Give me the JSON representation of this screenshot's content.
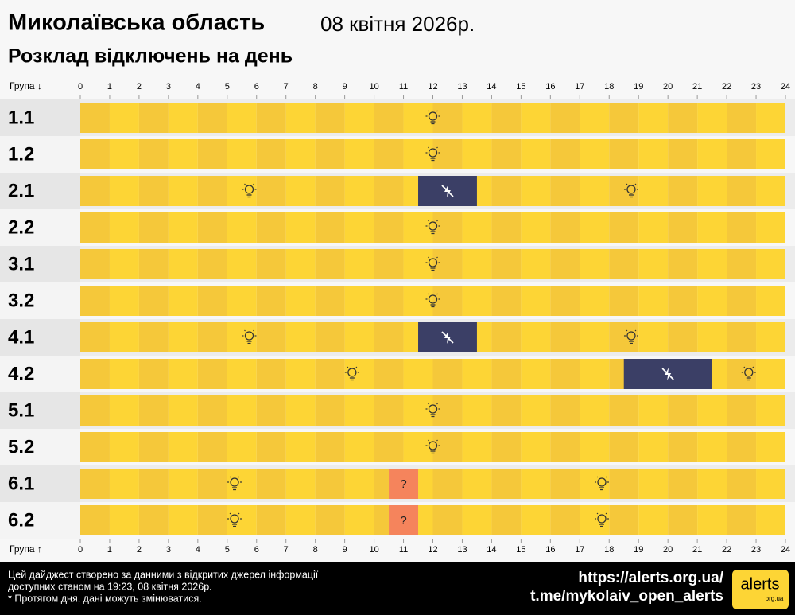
{
  "chart_data": {
    "type": "gantt",
    "title": "Миколаївська область",
    "date": "08 квітня 2026р.",
    "subtitle": "Розклад відключень на день",
    "axis_label_top": "Група ↓",
    "axis_label_bottom": "Група ↑",
    "xlim": [
      0,
      24
    ],
    "xticks": [
      0,
      1,
      2,
      3,
      4,
      5,
      6,
      7,
      8,
      9,
      10,
      11,
      12,
      13,
      14,
      15,
      16,
      17,
      18,
      19,
      20,
      21,
      22,
      23,
      24
    ],
    "colors": {
      "on": "#fdd535",
      "on_alt": "#f5c83a",
      "outage": "#3b3f66",
      "uncertain": "#f5845c"
    },
    "rows": [
      {
        "name": "1.1",
        "outages": [],
        "uncertain": []
      },
      {
        "name": "1.2",
        "outages": [],
        "uncertain": []
      },
      {
        "name": "2.1",
        "outages": [
          {
            "start": 11.5,
            "end": 13.5
          }
        ],
        "uncertain": []
      },
      {
        "name": "2.2",
        "outages": [],
        "uncertain": []
      },
      {
        "name": "3.1",
        "outages": [],
        "uncertain": []
      },
      {
        "name": "3.2",
        "outages": [],
        "uncertain": []
      },
      {
        "name": "4.1",
        "outages": [
          {
            "start": 11.5,
            "end": 13.5
          }
        ],
        "uncertain": []
      },
      {
        "name": "4.2",
        "outages": [
          {
            "start": 18.5,
            "end": 21.5
          }
        ],
        "uncertain": []
      },
      {
        "name": "5.1",
        "outages": [],
        "uncertain": []
      },
      {
        "name": "5.2",
        "outages": [],
        "uncertain": []
      },
      {
        "name": "6.1",
        "outages": [],
        "uncertain": [
          {
            "start": 10.5,
            "end": 11.5,
            "label": "?"
          }
        ]
      },
      {
        "name": "6.2",
        "outages": [],
        "uncertain": [
          {
            "start": 10.5,
            "end": 11.5,
            "label": "?"
          }
        ]
      }
    ]
  },
  "footer": {
    "note_lines": [
      "Цей дайджест створено за данними з відкритих джерел інформації",
      "доступних станом на 19:23, 08 квітня 2026р.",
      "* Протягом дня, дані можуть змінюватися."
    ],
    "links": [
      "https://alerts.org.ua/",
      "t.me/mykolaiv_open_alerts"
    ],
    "logo": "alerts",
    "logo_sub": "org.ua"
  }
}
